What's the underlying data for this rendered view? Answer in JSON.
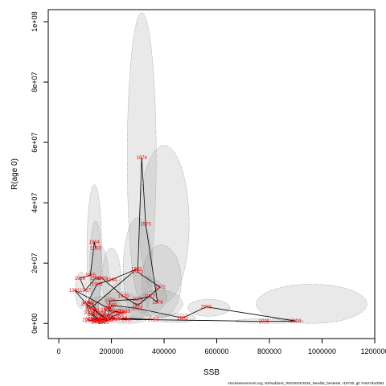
{
  "footer_text": "stockassessment.org, NShaddock_WGNSSK2025_Newlds_bestests, r18730, git 7e947dacf851",
  "chart_data": {
    "type": "scatter",
    "title": "",
    "xlabel": "SSB",
    "ylabel": "R(age 0)",
    "xlim": [
      -40000,
      1200000
    ],
    "ylim": [
      -5000000,
      104000000
    ],
    "x_ticks": [
      0,
      200000,
      400000,
      600000,
      800000,
      1000000,
      1200000
    ],
    "x_tick_labels": [
      "0",
      "200000",
      "400000",
      "600000",
      "800000",
      "1000000",
      "1200000"
    ],
    "y_ticks": [
      0,
      20000000,
      40000000,
      60000000,
      80000000,
      100000000
    ],
    "y_tick_labels": [
      "0e+00",
      "2e+07",
      "4e+07",
      "6e+07",
      "8e+07",
      "1e+08"
    ],
    "grid": false,
    "legend": "none",
    "colors": {
      "labels": "#ff0000",
      "line": "#000000",
      "ellipse_fill": "#999999",
      "ellipse_stroke": "#7a7a7a"
    },
    "points": [
      {
        "year": "1963",
        "x": 140000,
        "y": 25000000
      },
      {
        "year": "1964",
        "x": 135000,
        "y": 27000000
      },
      {
        "year": "1965",
        "x": 120000,
        "y": 16000000
      },
      {
        "year": "1966",
        "x": 80000,
        "y": 15000000
      },
      {
        "year": "1967",
        "x": 100000,
        "y": 11000000
      },
      {
        "year": "1968",
        "x": 140000,
        "y": 15000000
      },
      {
        "year": "1969",
        "x": 165000,
        "y": 15000000
      },
      {
        "year": "1970",
        "x": 245000,
        "y": 9000000
      },
      {
        "year": "1971",
        "x": 300000,
        "y": 6000000
      },
      {
        "year": "1972",
        "x": 385000,
        "y": 12000000
      },
      {
        "year": "1973",
        "x": 300000,
        "y": 17000000
      },
      {
        "year": "1974",
        "x": 315000,
        "y": 55000000
      },
      {
        "year": "1975",
        "x": 330000,
        "y": 33000000
      },
      {
        "year": "1976",
        "x": 375000,
        "y": 7000000
      },
      {
        "year": "1977",
        "x": 345000,
        "y": 9000000
      },
      {
        "year": "1978",
        "x": 300000,
        "y": 8000000
      },
      {
        "year": "1979",
        "x": 195000,
        "y": 7500000
      },
      {
        "year": "1980",
        "x": 190000,
        "y": 5000000
      },
      {
        "year": "1981",
        "x": 60000,
        "y": 11000000
      },
      {
        "year": "1982",
        "x": 120000,
        "y": 5000000
      },
      {
        "year": "1983",
        "x": 295000,
        "y": 18000000
      },
      {
        "year": "1984",
        "x": 200000,
        "y": 14500000
      },
      {
        "year": "1985",
        "x": 145000,
        "y": 13000000
      },
      {
        "year": "1986",
        "x": 110000,
        "y": 7000000
      },
      {
        "year": "1987",
        "x": 125000,
        "y": 6500000
      },
      {
        "year": "1988",
        "x": 150000,
        "y": 3500000
      },
      {
        "year": "1989",
        "x": 175000,
        "y": 2000000
      },
      {
        "year": "1990",
        "x": 160000,
        "y": 2500000
      },
      {
        "year": "1991",
        "x": 135000,
        "y": 4500000
      },
      {
        "year": "1992",
        "x": 130000,
        "y": 3000000
      },
      {
        "year": "1993",
        "x": 150000,
        "y": 1500000
      },
      {
        "year": "1994",
        "x": 145000,
        "y": 1000000
      },
      {
        "year": "1995",
        "x": 165000,
        "y": 1200000
      },
      {
        "year": "1996",
        "x": 180000,
        "y": 4500000
      },
      {
        "year": "1997",
        "x": 240000,
        "y": 3500000
      },
      {
        "year": "1998",
        "x": 215000,
        "y": 4000000
      },
      {
        "year": "1999",
        "x": 185000,
        "y": 2500000
      },
      {
        "year": "2000",
        "x": 200000,
        "y": 6000000
      },
      {
        "year": "2001",
        "x": 300000,
        "y": 5000000
      },
      {
        "year": "2002",
        "x": 470000,
        "y": 1800000
      },
      {
        "year": "2003",
        "x": 560000,
        "y": 5500000
      },
      {
        "year": "2004",
        "x": 900000,
        "y": 800000
      },
      {
        "year": "2005",
        "x": 780000,
        "y": 700000
      },
      {
        "year": "2006",
        "x": 130000,
        "y": 1500000
      },
      {
        "year": "2007",
        "x": 155000,
        "y": 800000
      },
      {
        "year": "2008",
        "x": 115000,
        "y": 3500000
      },
      {
        "year": "2009",
        "x": 105000,
        "y": 6500000
      },
      {
        "year": "2010",
        "x": 185000,
        "y": 1000000
      },
      {
        "year": "2011",
        "x": 140000,
        "y": 1500000
      },
      {
        "year": "2012",
        "x": 120000,
        "y": 1000000
      },
      {
        "year": "2013",
        "x": 110000,
        "y": 1200000
      },
      {
        "year": "2014",
        "x": 145000,
        "y": 500000
      },
      {
        "year": "2015",
        "x": 170000,
        "y": 300000
      },
      {
        "year": "2016",
        "x": 200000,
        "y": 1500000
      },
      {
        "year": "2017",
        "x": 260000,
        "y": 1200000
      },
      {
        "year": "2018",
        "x": 240000,
        "y": 1800000
      },
      {
        "year": "2019",
        "x": 360000,
        "y": 1300000
      },
      {
        "year": "2020",
        "x": 215000,
        "y": 1500000
      },
      {
        "year": "2021",
        "x": 195000,
        "y": 2000000
      },
      {
        "year": "2022",
        "x": 225000,
        "y": 3000000
      },
      {
        "year": "2023",
        "x": 250000,
        "y": 4000000
      }
    ],
    "ellipses": [
      {
        "cx": 315000,
        "cy": 55000000,
        "rx": 55000,
        "ry": 48000000
      },
      {
        "cx": 400000,
        "cy": 33000000,
        "rx": 95000,
        "ry": 26000000
      },
      {
        "cx": 960000,
        "cy": 6500000,
        "rx": 210000,
        "ry": 6500000
      },
      {
        "cx": 570000,
        "cy": 5200000,
        "rx": 80000,
        "ry": 2800000
      },
      {
        "cx": 135000,
        "cy": 24000000,
        "rx": 28000,
        "ry": 22000000
      },
      {
        "cx": 140000,
        "cy": 19000000,
        "rx": 22000,
        "ry": 15000000
      },
      {
        "cx": 155000,
        "cy": 14000000,
        "rx": 35000,
        "ry": 12000000
      },
      {
        "cx": 200000,
        "cy": 15000000,
        "rx": 35000,
        "ry": 10000000
      },
      {
        "cx": 300000,
        "cy": 18000000,
        "rx": 55000,
        "ry": 17000000
      },
      {
        "cx": 390000,
        "cy": 14000000,
        "rx": 75000,
        "ry": 12000000
      },
      {
        "cx": 300000,
        "cy": 9000000,
        "rx": 110000,
        "ry": 7000000
      },
      {
        "cx": 380000,
        "cy": 6500000,
        "rx": 90000,
        "ry": 4500000
      },
      {
        "cx": 85000,
        "cy": 11000000,
        "rx": 22000,
        "ry": 6000000
      },
      {
        "cx": 170000,
        "cy": 5000000,
        "rx": 70000,
        "ry": 4000000
      },
      {
        "cx": 440000,
        "cy": 1800000,
        "rx": 80000,
        "ry": 1500000
      },
      {
        "cx": 800000,
        "cy": 800000,
        "rx": 130000,
        "ry": 800000
      },
      {
        "cx": 260000,
        "cy": 2500000,
        "rx": 90000,
        "ry": 2500000
      },
      {
        "cx": 230000,
        "cy": 7000000,
        "rx": 70000,
        "ry": 3500000
      },
      {
        "cx": 150000,
        "cy": 2000000,
        "rx": 45000,
        "ry": 2000000
      }
    ]
  }
}
